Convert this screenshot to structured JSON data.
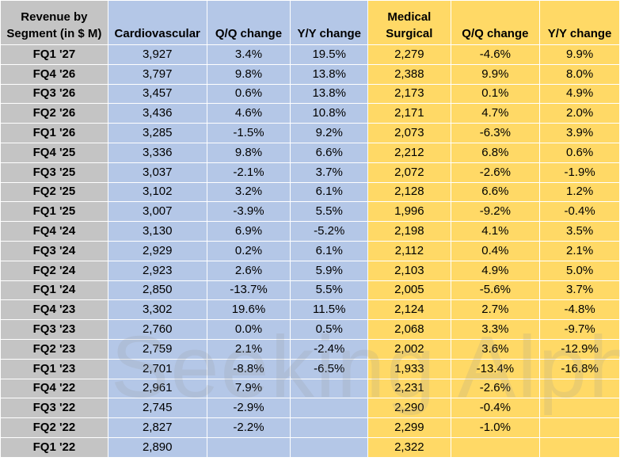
{
  "table": {
    "headers": {
      "label": [
        "Revenue by",
        "Segment (in $ M)"
      ],
      "cardio": "Cardiovascular",
      "cardio_qq": "Q/Q change",
      "cardio_yy": "Y/Y change",
      "medsurg": [
        "Medical",
        "Surgical"
      ],
      "medsurg_qq": "Q/Q change",
      "medsurg_yy": "Y/Y change"
    },
    "rows": [
      [
        "FQ1 '27",
        "3,927",
        "3.4%",
        "19.5%",
        "2,279",
        "-4.6%",
        "9.9%"
      ],
      [
        "FQ4 '26",
        "3,797",
        "9.8%",
        "13.8%",
        "2,388",
        "9.9%",
        "8.0%"
      ],
      [
        "FQ3 '26",
        "3,457",
        "0.6%",
        "13.8%",
        "2,173",
        "0.1%",
        "4.9%"
      ],
      [
        "FQ2 '26",
        "3,436",
        "4.6%",
        "10.8%",
        "2,171",
        "4.7%",
        "2.0%"
      ],
      [
        "FQ1 '26",
        "3,285",
        "-1.5%",
        "9.2%",
        "2,073",
        "-6.3%",
        "3.9%"
      ],
      [
        "FQ4 '25",
        "3,336",
        "9.8%",
        "6.6%",
        "2,212",
        "6.8%",
        "0.6%"
      ],
      [
        "FQ3 '25",
        "3,037",
        "-2.1%",
        "3.7%",
        "2,072",
        "-2.6%",
        "-1.9%"
      ],
      [
        "FQ2 '25",
        "3,102",
        "3.2%",
        "6.1%",
        "2,128",
        "6.6%",
        "1.2%"
      ],
      [
        "FQ1 '25",
        "3,007",
        "-3.9%",
        "5.5%",
        "1,996",
        "-9.2%",
        "-0.4%"
      ],
      [
        "FQ4 '24",
        "3,130",
        "6.9%",
        "-5.2%",
        "2,198",
        "4.1%",
        "3.5%"
      ],
      [
        "FQ3 '24",
        "2,929",
        "0.2%",
        "6.1%",
        "2,112",
        "0.4%",
        "2.1%"
      ],
      [
        "FQ2 '24",
        "2,923",
        "2.6%",
        "5.9%",
        "2,103",
        "4.9%",
        "5.0%"
      ],
      [
        "FQ1 '24",
        "2,850",
        "-13.7%",
        "5.5%",
        "2,005",
        "-5.6%",
        "3.7%"
      ],
      [
        "FQ4 '23",
        "3,302",
        "19.6%",
        "11.5%",
        "2,124",
        "2.7%",
        "-4.8%"
      ],
      [
        "FQ3 '23",
        "2,760",
        "0.0%",
        "0.5%",
        "2,068",
        "3.3%",
        "-9.7%"
      ],
      [
        "FQ2 '23",
        "2,759",
        "2.1%",
        "-2.4%",
        "2,002",
        "3.6%",
        "-12.9%"
      ],
      [
        "FQ1 '23",
        "2,701",
        "-8.8%",
        "-6.5%",
        "1,933",
        "-13.4%",
        "-16.8%"
      ],
      [
        "FQ4 '22",
        "2,961",
        "7.9%",
        "",
        "2,231",
        "-2.6%",
        ""
      ],
      [
        "FQ3 '22",
        "2,745",
        "-2.9%",
        "",
        "2,290",
        "-0.4%",
        ""
      ],
      [
        "FQ2 '22",
        "2,827",
        "-2.2%",
        "",
        "2,299",
        "-1.0%",
        ""
      ],
      [
        "FQ1 '22",
        "2,890",
        "",
        "",
        "2,322",
        "",
        ""
      ]
    ]
  },
  "watermark": "Seeking Alpha",
  "colors": {
    "label_col": "#c4c4c4",
    "cardio_col": "#b4c7e7",
    "medsurg_col": "#ffd966"
  }
}
